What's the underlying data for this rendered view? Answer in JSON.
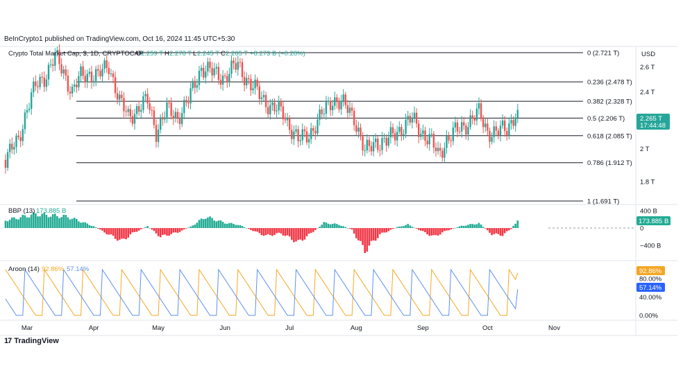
{
  "header": {
    "publisher": "BeInCrypto1 published on TradingView.com, Oct 16, 2024 11:45 UTC+5:30"
  },
  "price_pane": {
    "symbol": "Crypto Total Market Cap, $, 1D, CRYPTOCAP",
    "open_label": "O",
    "open": "2.259 T",
    "high_label": "H",
    "high": "2.278 T",
    "low_label": "L",
    "low": "2.245 T",
    "close_label": "C",
    "close": "2.265 T",
    "change": "+8.273 B (+0.28%)",
    "currency": "USD",
    "last_price_tag": "2.265 T",
    "countdown_tag": "17:44:48"
  },
  "bbp_pane": {
    "label": "BBP (13)",
    "value": "173.885 B",
    "tag": "173.885 B"
  },
  "aroon_pane": {
    "label": "Aroon (14)",
    "up_value": "92.86%",
    "down_value": "57.14%",
    "up_tag": "92.86%",
    "down_tag": "57.14%"
  },
  "footer": {
    "brand": "TradingView",
    "brand_mark": "17"
  },
  "colors": {
    "up": "#26a69a",
    "down": "#ef5350",
    "bbp_up": "#22ab94",
    "bbp_down": "#f23645",
    "aroon_up": "#f5a623",
    "aroon_down": "#5b8ff0",
    "fib_line": "#131722"
  },
  "chart_data": [
    {
      "type": "candlestick",
      "title": "Crypto Total Market Cap, $, 1D, CRYPTOCAP",
      "ylabel": "USD",
      "y_scale": "log",
      "y_ticks": [
        "2.6 T",
        "2.4 T",
        "2.2 T",
        "2 T",
        "1.8 T"
      ],
      "y_tick_values": [
        2.6,
        2.4,
        2.2,
        2.0,
        1.8
      ],
      "x_ticks": [
        "Mar",
        "Apr",
        "May",
        "Jun",
        "Jul",
        "Aug",
        "Sep",
        "Oct",
        "Nov"
      ],
      "fib_levels": [
        {
          "label": "0 (2.721 T)",
          "value": 2.721
        },
        {
          "label": "0.236 (2.478 T)",
          "value": 2.478
        },
        {
          "label": "0.382 (2.328 T)",
          "value": 2.328
        },
        {
          "label": "0.5 (2.206 T)",
          "value": 2.206
        },
        {
          "label": "0.618 (2.085 T)",
          "value": 2.085
        },
        {
          "label": "0.786 (1.912 T)",
          "value": 1.912
        },
        {
          "label": "1 (1.691 T)",
          "value": 1.691
        }
      ],
      "close_path": [
        [
          "Feb 20",
          1.93
        ],
        [
          "Feb 26",
          2.06
        ],
        [
          "Mar 1",
          2.28
        ],
        [
          "Mar 5",
          2.44
        ],
        [
          "Mar 9",
          2.52
        ],
        [
          "Mar 14",
          2.68
        ],
        [
          "Mar 18",
          2.56
        ],
        [
          "Mar 22",
          2.4
        ],
        [
          "Mar 26",
          2.52
        ],
        [
          "Mar 30",
          2.55
        ],
        [
          "Apr 3",
          2.52
        ],
        [
          "Apr 8",
          2.62
        ],
        [
          "Apr 13",
          2.32
        ],
        [
          "Apr 17",
          2.22
        ],
        [
          "Apr 22",
          2.28
        ],
        [
          "Apr 26",
          2.33
        ],
        [
          "Apr 30",
          2.12
        ],
        [
          "May 5",
          2.26
        ],
        [
          "May 10",
          2.22
        ],
        [
          "May 15",
          2.33
        ],
        [
          "May 21",
          2.6
        ],
        [
          "May 26",
          2.55
        ],
        [
          "Jun 1",
          2.52
        ],
        [
          "Jun 7",
          2.62
        ],
        [
          "Jun 13",
          2.45
        ],
        [
          "Jun 18",
          2.36
        ],
        [
          "Jun 23",
          2.28
        ],
        [
          "Jun 28",
          2.24
        ],
        [
          "Jul 5",
          2.05
        ],
        [
          "Jul 10",
          2.1
        ],
        [
          "Jul 15",
          2.2
        ],
        [
          "Jul 21",
          2.35
        ],
        [
          "Jul 26",
          2.3
        ],
        [
          "Jul 31",
          2.22
        ],
        [
          "Aug 5",
          1.97
        ],
        [
          "Aug 10",
          2.05
        ],
        [
          "Aug 15",
          2.04
        ],
        [
          "Aug 20",
          2.12
        ],
        [
          "Aug 24",
          2.16
        ],
        [
          "Aug 27",
          2.2
        ],
        [
          "Aug 31",
          2.12
        ],
        [
          "Sep 5",
          2.04
        ],
        [
          "Sep 8",
          1.96
        ],
        [
          "Sep 12",
          2.06
        ],
        [
          "Sep 17",
          2.12
        ],
        [
          "Sep 22",
          2.18
        ],
        [
          "Sep 27",
          2.24
        ],
        [
          "Oct 1",
          2.12
        ],
        [
          "Oct 5",
          2.1
        ],
        [
          "Oct 10",
          2.14
        ],
        [
          "Oct 14",
          2.24
        ],
        [
          "Oct 15",
          2.265
        ]
      ]
    },
    {
      "type": "bar",
      "title": "BBP (13)",
      "y_ticks": [
        "400 B",
        "0",
        "−400 B"
      ],
      "y_tick_values": [
        400,
        0,
        -400
      ],
      "last_value": 173.885,
      "profile": [
        [
          "Feb 20",
          180
        ],
        [
          "Mar 5",
          320
        ],
        [
          "Mar 20",
          260
        ],
        [
          "Apr 1",
          40
        ],
        [
          "Apr 8",
          -150
        ],
        [
          "Apr 14",
          -300
        ],
        [
          "Apr 19",
          -120
        ],
        [
          "Apr 26",
          40
        ],
        [
          "May 2",
          -200
        ],
        [
          "May 10",
          -100
        ],
        [
          "May 16",
          30
        ],
        [
          "May 23",
          260
        ],
        [
          "Jun 1",
          120
        ],
        [
          "Jun 7",
          80
        ],
        [
          "Jun 14",
          -60
        ],
        [
          "Jun 20",
          -180
        ],
        [
          "Jun 27",
          -120
        ],
        [
          "Jul 5",
          -330
        ],
        [
          "Jul 10",
          -160
        ],
        [
          "Jul 17",
          120
        ],
        [
          "Jul 24",
          80
        ],
        [
          "Jul 30",
          -40
        ],
        [
          "Aug 5",
          -520
        ],
        [
          "Aug 12",
          -150
        ],
        [
          "Aug 20",
          20
        ],
        [
          "Aug 25",
          80
        ],
        [
          "Aug 31",
          -60
        ],
        [
          "Sep 6",
          -200
        ],
        [
          "Sep 12",
          -60
        ],
        [
          "Sep 19",
          50
        ],
        [
          "Sep 27",
          110
        ],
        [
          "Oct 3",
          -140
        ],
        [
          "Oct 8",
          -160
        ],
        [
          "Oct 12",
          -20
        ],
        [
          "Oct 15",
          174
        ]
      ]
    },
    {
      "type": "line",
      "title": "Aroon (14)",
      "y_ticks": [
        "80.00%",
        "40.00%",
        "0.00%"
      ],
      "y_tick_values": [
        80,
        40,
        0
      ],
      "series": [
        {
          "name": "Aroon Up",
          "last_value": 92.86
        },
        {
          "name": "Aroon Down",
          "last_value": 57.14
        }
      ]
    }
  ]
}
